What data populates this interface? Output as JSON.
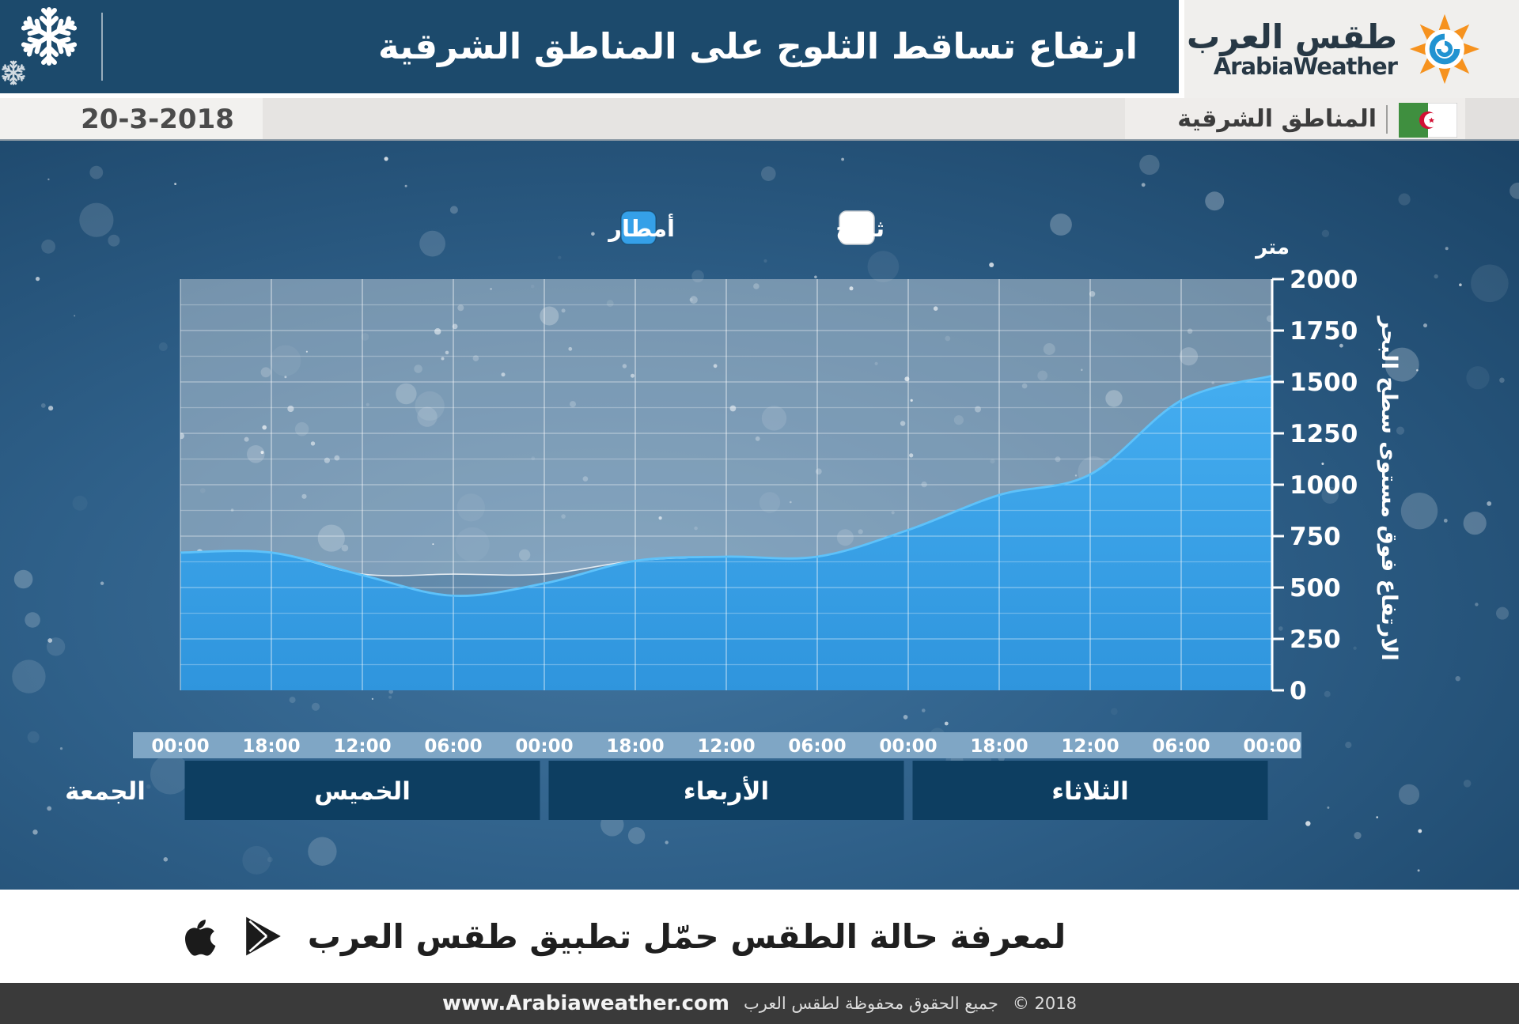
{
  "header": {
    "title": "ارتفاع تساقط الثلوج على المناطق الشرقية",
    "snowflake_icon": "snowflake-icon",
    "logo": {
      "arabic": "طقس العرب",
      "latin": "ArabiaWeather",
      "icon": "sun-spiral-icon"
    }
  },
  "subheader": {
    "date": "20-3-2018",
    "region": "المناطق الشرقية",
    "flag": "algeria-flag"
  },
  "chart_data": {
    "type": "area",
    "direction_note": "time flows right-to-left; earliest point (Tuesday 00:00) is at the right edge",
    "unit_label": "متر",
    "y_axis_title": "الارتفاع فوق مستوى سطح البحر",
    "ylim": [
      0,
      2000
    ],
    "y_ticks": [
      0,
      250,
      500,
      750,
      1000,
      1250,
      1500,
      1750,
      2000
    ],
    "x_tick_labels_display_order": [
      "00:00",
      "18:00",
      "12:00",
      "06:00",
      "00:00",
      "18:00",
      "12:00",
      "06:00",
      "00:00",
      "18:00",
      "12:00",
      "06:00",
      "00:00"
    ],
    "legend": [
      {
        "label": "أمطار",
        "color": "#35a0e8"
      },
      {
        "label": "ثلوج",
        "color": "#ffffff"
      }
    ],
    "edge_day_label": "الجمعة",
    "day_bands_display_order": [
      {
        "label": "الخميس",
        "tick_start": 0,
        "tick_end": 4
      },
      {
        "label": "الأربعاء",
        "tick_start": 4,
        "tick_end": 8
      },
      {
        "label": "الثلاثاء",
        "tick_start": 8,
        "tick_end": 12
      }
    ],
    "points_chronological": [
      {
        "day": "الثلاثاء",
        "time": "00:00",
        "rain_m": 1530,
        "snow_m": 1530
      },
      {
        "day": "الثلاثاء",
        "time": "06:00",
        "rain_m": 1410,
        "snow_m": 1410
      },
      {
        "day": "الثلاثاء",
        "time": "12:00",
        "rain_m": 1050,
        "snow_m": 1050
      },
      {
        "day": "الثلاثاء",
        "time": "18:00",
        "rain_m": 950,
        "snow_m": 950
      },
      {
        "day": "الأربعاء",
        "time": "00:00",
        "rain_m": 780,
        "snow_m": 780
      },
      {
        "day": "الأربعاء",
        "time": "06:00",
        "rain_m": 650,
        "snow_m": 650
      },
      {
        "day": "الأربعاء",
        "time": "12:00",
        "rain_m": 650,
        "snow_m": 650
      },
      {
        "day": "الأربعاء",
        "time": "18:00",
        "rain_m": 630,
        "snow_m": 630
      },
      {
        "day": "الخميس",
        "time": "00:00",
        "rain_m": 520,
        "snow_m": 565
      },
      {
        "day": "الخميس",
        "time": "06:00",
        "rain_m": 460,
        "snow_m": 565
      },
      {
        "day": "الخميس",
        "time": "12:00",
        "rain_m": 560,
        "snow_m": 565
      },
      {
        "day": "الخميس",
        "time": "18:00",
        "rain_m": 670,
        "snow_m": 670
      },
      {
        "day": "الجمعة",
        "time": "00:00",
        "rain_m": 670,
        "snow_m": 670
      }
    ],
    "colors": {
      "rain_fill": "#38a0e6",
      "rain_stroke": "#5ec2fa",
      "snow_overlay": "rgba(255,255,255,0.20)",
      "tick_band": "#7fa6c5",
      "day_bar": "#0d3e61",
      "axis": "#ffffff"
    }
  },
  "app_bar": {
    "text": "لمعرفة حالة الطقس حمّل تطبيق طقس العرب",
    "icons": [
      "google-play-icon",
      "apple-icon"
    ]
  },
  "footer": {
    "url": "www.Arabiaweather.com",
    "rights": "جميع الحقوق محفوظة لطقس العرب",
    "year": "© 2018"
  }
}
